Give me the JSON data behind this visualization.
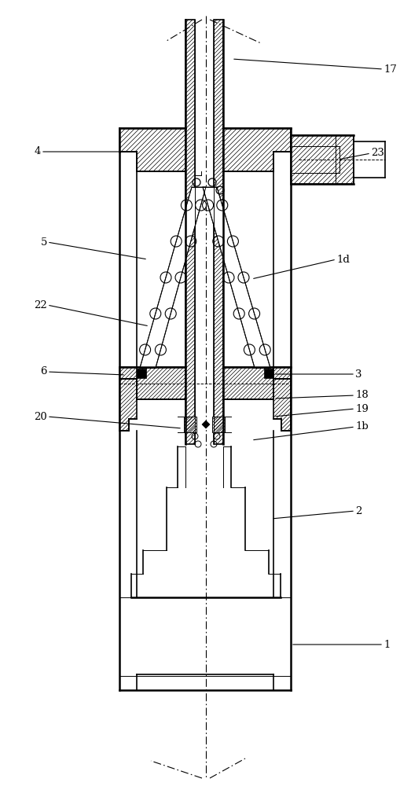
{
  "fig_width": 5.23,
  "fig_height": 10.0,
  "dpi": 100,
  "bg_color": "#ffffff",
  "line_color": "#000000",
  "label_entries": [
    [
      "17",
      [
        488,
        88
      ],
      [
        295,
        75
      ]
    ],
    [
      "23",
      [
        472,
        195
      ],
      [
        430,
        203
      ]
    ],
    [
      "4",
      [
        52,
        193
      ],
      [
        160,
        193
      ]
    ],
    [
      "5",
      [
        60,
        308
      ],
      [
        188,
        330
      ]
    ],
    [
      "1d",
      [
        428,
        330
      ],
      [
        320,
        355
      ]
    ],
    [
      "22",
      [
        60,
        388
      ],
      [
        190,
        415
      ]
    ],
    [
      "6",
      [
        60,
        473
      ],
      [
        160,
        477
      ]
    ],
    [
      "3",
      [
        452,
        476
      ],
      [
        348,
        476
      ]
    ],
    [
      "18",
      [
        452,
        503
      ],
      [
        348,
        507
      ]
    ],
    [
      "19",
      [
        452,
        520
      ],
      [
        348,
        530
      ]
    ],
    [
      "20",
      [
        60,
        530
      ],
      [
        232,
        545
      ]
    ],
    [
      "1b",
      [
        452,
        543
      ],
      [
        320,
        560
      ]
    ],
    [
      "2",
      [
        452,
        650
      ],
      [
        345,
        660
      ]
    ],
    [
      "1",
      [
        488,
        820
      ],
      [
        370,
        820
      ]
    ]
  ]
}
